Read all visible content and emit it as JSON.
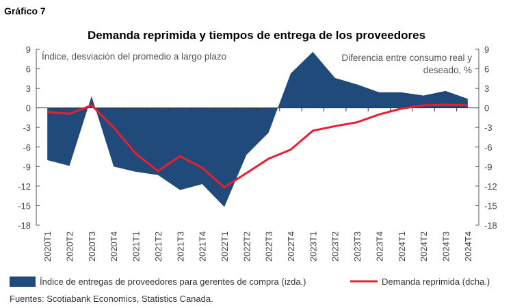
{
  "figure_label": "Gráfico 7",
  "source": "Fuentes: Scotiabank Economics, Statistics Canada.",
  "colors": {
    "area": "#1f4a7a",
    "line": "#ee1c2e",
    "axis": "#555555"
  },
  "chart_data": {
    "type": "area+line",
    "title": "Demanda reprimida y tiempos de entrega de los proveedores",
    "ylabel_left": "Índice, desviación del promedio a largo plazo",
    "ylabel_right": "Diferencia entre consumo real y deseado, %",
    "ylim": [
      -18,
      9
    ],
    "yticks": [
      9,
      6,
      3,
      0,
      -3,
      -6,
      -9,
      -12,
      -15,
      -18
    ],
    "grid": false,
    "legend_position": "bottom",
    "categories": [
      "2020T1",
      "2020T2",
      "2020T3",
      "2020T4",
      "2021T1",
      "2021T2",
      "2021T3",
      "2021T4",
      "2022T1",
      "2022T2",
      "2022T3",
      "2022T4",
      "2023T1",
      "2023T2",
      "2023T3",
      "2023T4",
      "2024T1",
      "2024T2",
      "2024T3",
      "2024T4"
    ],
    "series": [
      {
        "name": "Índice de entregas de proveedores para gerentes de compra (izda.)",
        "type": "area",
        "axis": "left",
        "values": [
          -8.0,
          -8.9,
          1.8,
          -9.0,
          -9.8,
          -10.3,
          -12.6,
          -11.7,
          -15.2,
          -7.2,
          -3.8,
          5.3,
          8.6,
          4.6,
          3.6,
          2.4,
          2.4,
          1.9,
          2.6,
          1.4
        ]
      },
      {
        "name": "Demanda reprimida (dcha.)",
        "type": "line",
        "axis": "right",
        "values": [
          -0.6,
          -0.9,
          0.4,
          -3.0,
          -7.0,
          -9.7,
          -7.4,
          -9.2,
          -12.2,
          -10.0,
          -7.8,
          -6.4,
          -3.5,
          -2.8,
          -2.2,
          -1.0,
          -0.1,
          0.4,
          0.5,
          0.4
        ]
      }
    ]
  }
}
